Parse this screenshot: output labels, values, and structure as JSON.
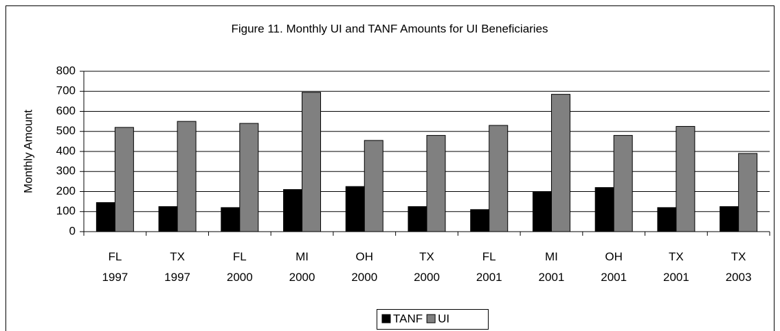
{
  "chart_data": {
    "type": "bar",
    "title": "Figure 11.  Monthly UI and TANF Amounts for UI Beneficiaries",
    "y_label": "Monthly Amount",
    "categories": [
      "FL 1997",
      "TX 1997",
      "FL 2000",
      "MI 2000",
      "OH 2000",
      "TX 2000",
      "FL 2001",
      "MI 2001",
      "OH 2001",
      "TX 2001",
      "TX 2003"
    ],
    "series": [
      {
        "name": "TANF",
        "color": "#000000",
        "values": [
          145,
          125,
          120,
          210,
          225,
          125,
          110,
          200,
          220,
          120,
          125
        ]
      },
      {
        "name": "UI",
        "color": "#808080",
        "values": [
          520,
          550,
          540,
          695,
          455,
          480,
          530,
          685,
          480,
          525,
          390
        ]
      }
    ],
    "ylim": [
      0,
      800
    ],
    "yticks": [
      0,
      100,
      200,
      300,
      400,
      500,
      600,
      700,
      800
    ],
    "grid": true,
    "legend": "bottom"
  }
}
